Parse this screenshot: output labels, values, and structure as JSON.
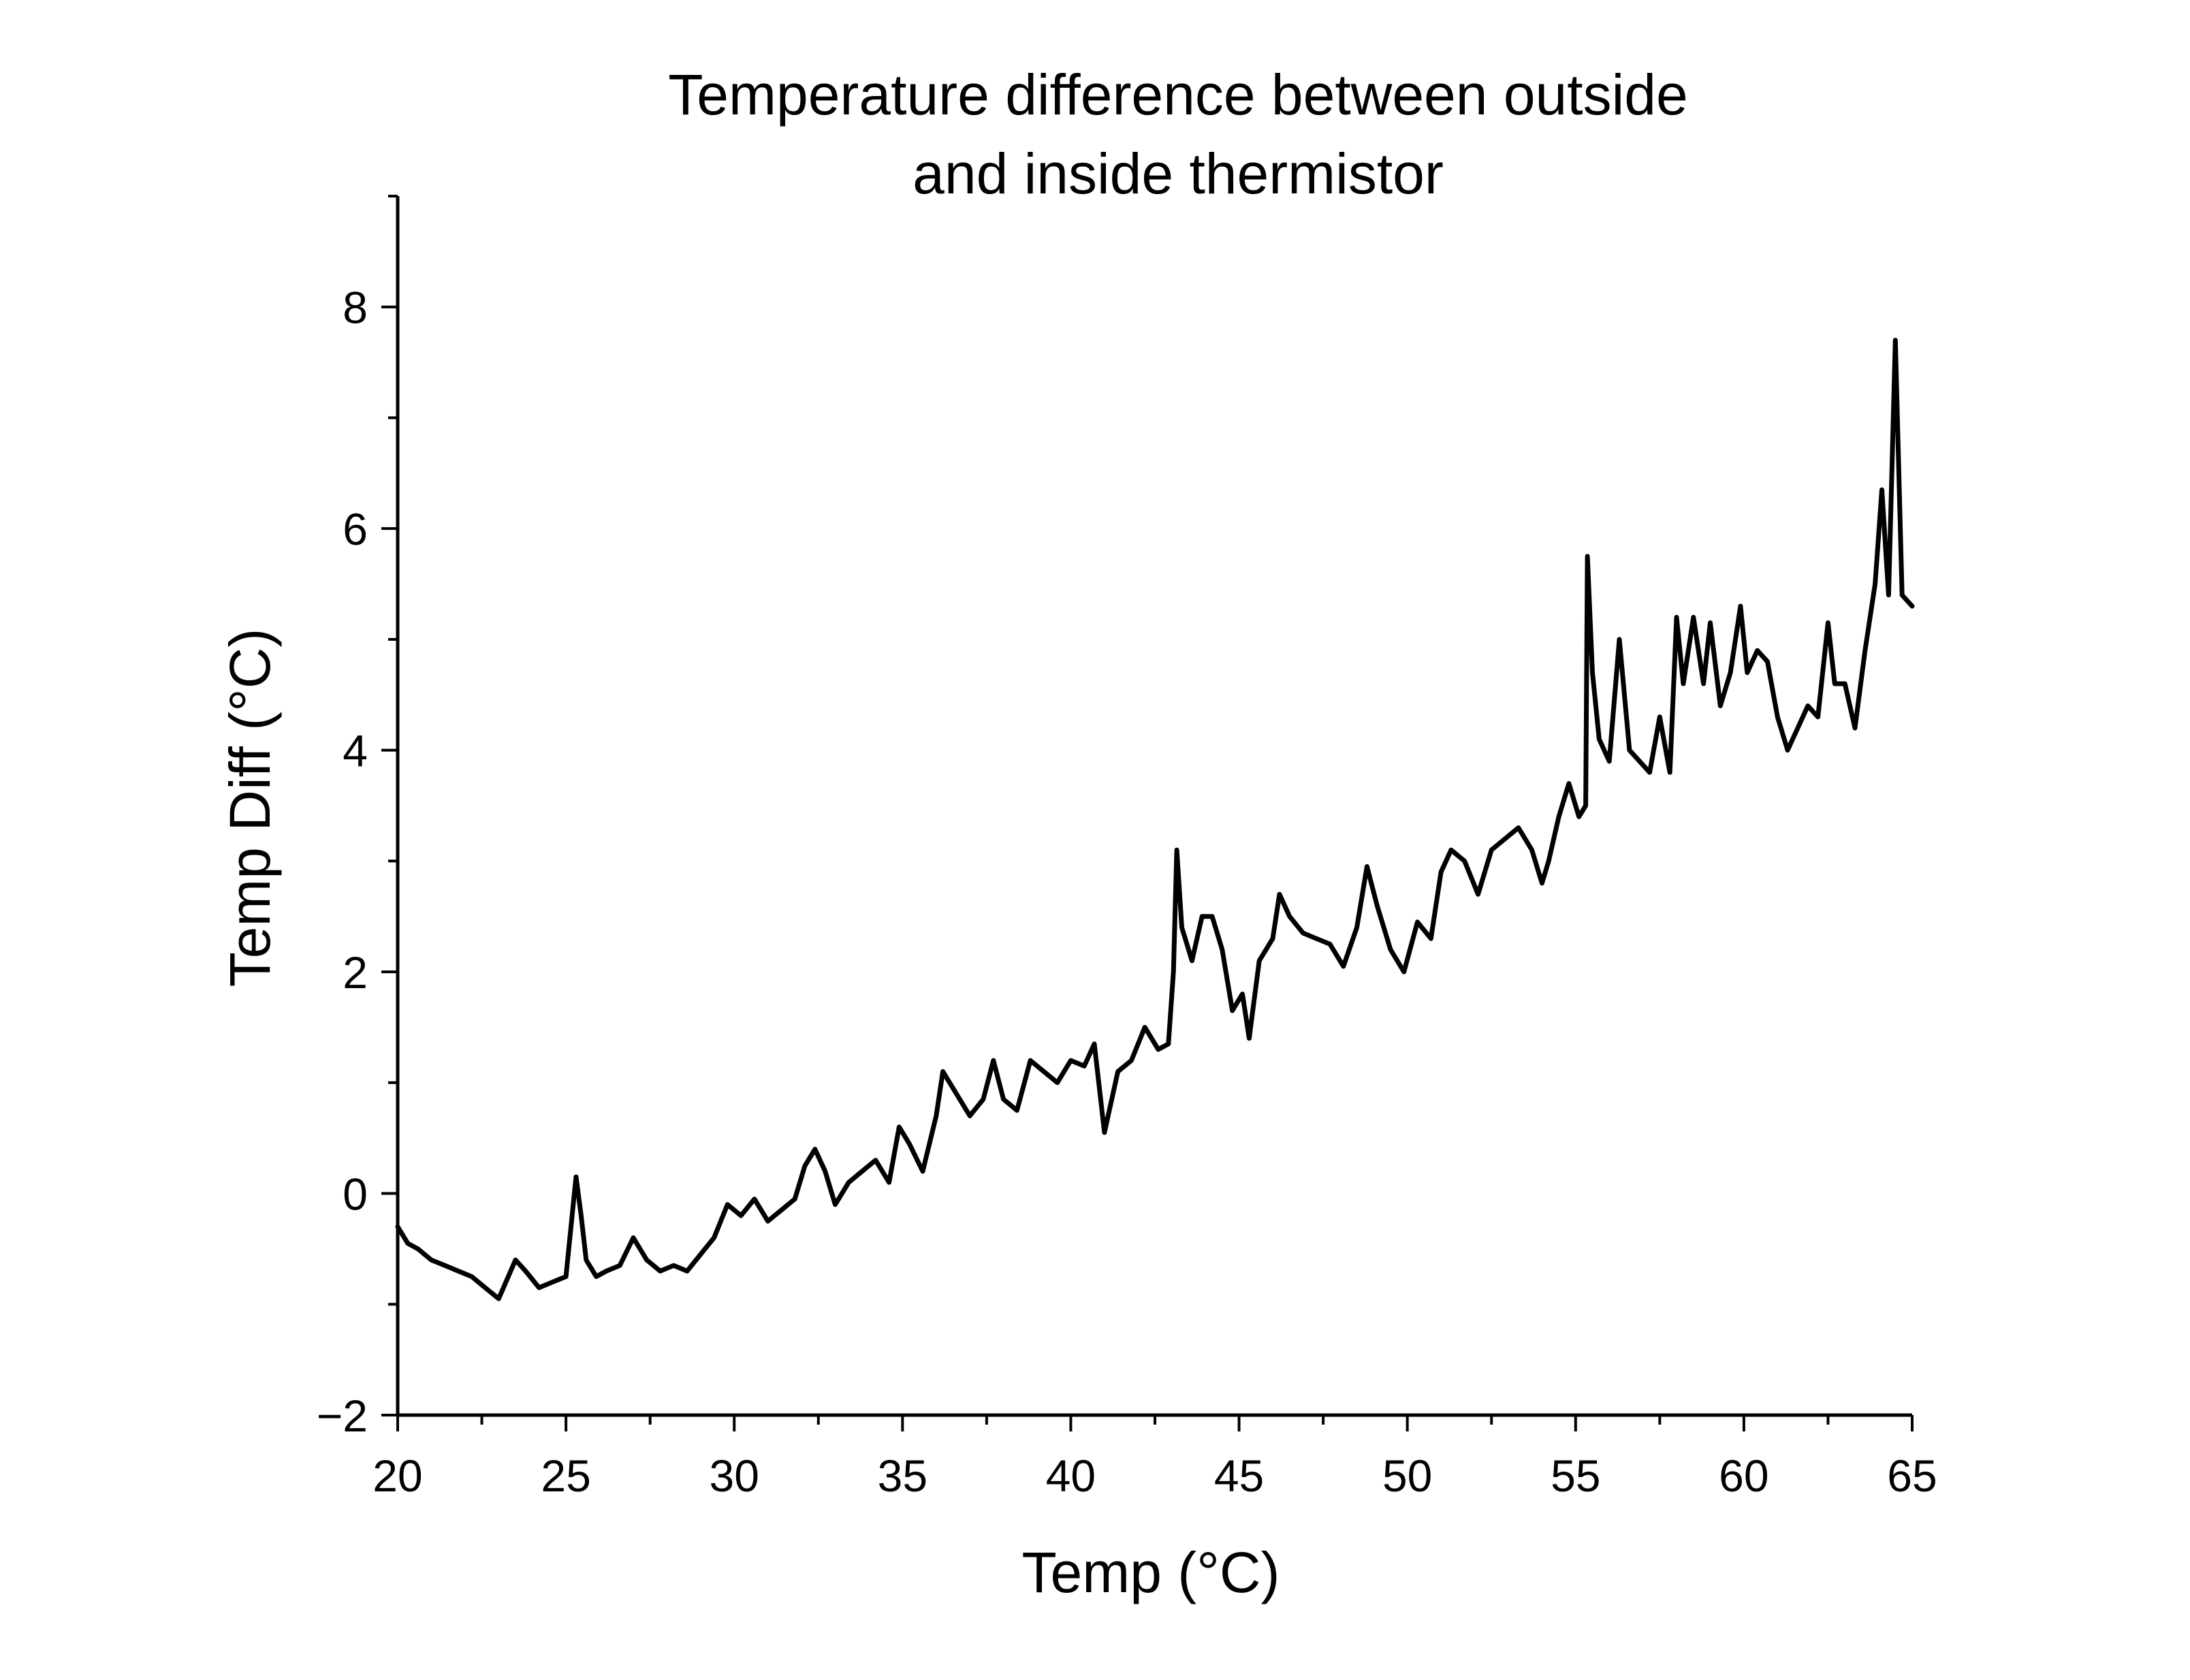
{
  "chart_data": {
    "type": "line",
    "title": [
      "Temperature difference between outside",
      "and inside thermistor"
    ],
    "xlabel": "Temp (°C)",
    "ylabel": "Temp Diff (°C)",
    "xlim": [
      20,
      65
    ],
    "ylim": [
      -2,
      9
    ],
    "xticks": [
      "20",
      "25",
      "30",
      "35",
      "40",
      "45",
      "50",
      "55",
      "60",
      "65"
    ],
    "yticks": [
      "−2",
      "0",
      "2",
      "4",
      "6",
      "8"
    ],
    "grid": false,
    "legend": "none",
    "line_color": "#000000",
    "series": [
      {
        "x": [
          20.0,
          20.3,
          20.6,
          21.0,
          21.4,
          21.8,
          22.2,
          22.6,
          23.0,
          23.5,
          23.8,
          24.2,
          24.6,
          25.0,
          25.15,
          25.3,
          25.45,
          25.6,
          25.9,
          26.2,
          26.6,
          27.0,
          27.4,
          27.8,
          28.2,
          28.6,
          29.0,
          29.4,
          29.8,
          30.2,
          30.6,
          31.0,
          31.4,
          31.8,
          32.1,
          32.4,
          32.7,
          33.0,
          33.4,
          33.8,
          34.2,
          34.6,
          34.9,
          35.2,
          35.6,
          36.0,
          36.2,
          36.6,
          37.0,
          37.4,
          37.7,
          38.0,
          38.4,
          38.8,
          39.2,
          39.6,
          40.0,
          40.4,
          40.7,
          41.0,
          41.4,
          41.8,
          42.2,
          42.6,
          42.9,
          43.05,
          43.15,
          43.3,
          43.6,
          43.9,
          44.2,
          44.5,
          44.8,
          45.1,
          45.3,
          45.6,
          46.0,
          46.2,
          46.5,
          46.9,
          47.3,
          47.7,
          48.1,
          48.5,
          48.8,
          49.1,
          49.5,
          49.9,
          50.3,
          50.7,
          51.0,
          51.3,
          51.7,
          52.1,
          52.5,
          52.9,
          53.3,
          53.7,
          54.0,
          54.2,
          54.5,
          54.8,
          55.1,
          55.3,
          55.35,
          55.5,
          55.7,
          56.0,
          56.3,
          56.6,
          56.9,
          57.2,
          57.5,
          57.8,
          58.0,
          58.2,
          58.5,
          58.8,
          59.0,
          59.3,
          59.6,
          59.9,
          60.1,
          60.4,
          60.7,
          61.0,
          61.3,
          61.6,
          61.9,
          62.2,
          62.5,
          62.7,
          63.0,
          63.3,
          63.6,
          63.9,
          64.1,
          64.3,
          64.5,
          64.7,
          65.0
        ],
        "y": [
          -0.3,
          -0.45,
          -0.5,
          -0.6,
          -0.65,
          -0.7,
          -0.75,
          -0.85,
          -0.95,
          -0.6,
          -0.7,
          -0.85,
          -0.8,
          -0.75,
          -0.3,
          0.15,
          -0.2,
          -0.6,
          -0.75,
          -0.7,
          -0.65,
          -0.4,
          -0.6,
          -0.7,
          -0.65,
          -0.7,
          -0.55,
          -0.4,
          -0.1,
          -0.2,
          -0.05,
          -0.25,
          -0.15,
          -0.05,
          0.25,
          0.4,
          0.2,
          -0.1,
          0.1,
          0.2,
          0.3,
          0.1,
          0.6,
          0.45,
          0.2,
          0.7,
          1.1,
          0.9,
          0.7,
          0.85,
          1.2,
          0.85,
          0.75,
          1.2,
          1.1,
          1.0,
          1.2,
          1.15,
          1.35,
          0.55,
          1.1,
          1.2,
          1.5,
          1.3,
          1.35,
          2.0,
          3.1,
          2.4,
          2.1,
          2.5,
          2.5,
          2.2,
          1.65,
          1.8,
          1.4,
          2.1,
          2.3,
          2.7,
          2.5,
          2.35,
          2.3,
          2.25,
          2.05,
          2.4,
          2.95,
          2.6,
          2.2,
          2.0,
          2.45,
          2.3,
          2.9,
          3.1,
          3.0,
          2.7,
          3.1,
          3.2,
          3.3,
          3.1,
          2.8,
          3.0,
          3.4,
          3.7,
          3.4,
          3.5,
          5.75,
          4.7,
          4.1,
          3.9,
          5.0,
          4.0,
          3.9,
          3.8,
          4.3,
          3.8,
          5.2,
          4.6,
          5.2,
          4.6,
          5.15,
          4.4,
          4.7,
          5.3,
          4.7,
          4.9,
          4.8,
          4.3,
          4.0,
          4.2,
          4.4,
          4.3,
          5.15,
          4.6,
          4.6,
          4.2,
          4.9,
          5.5,
          6.35,
          5.4,
          7.7,
          5.4,
          5.3
        ]
      }
    ]
  }
}
